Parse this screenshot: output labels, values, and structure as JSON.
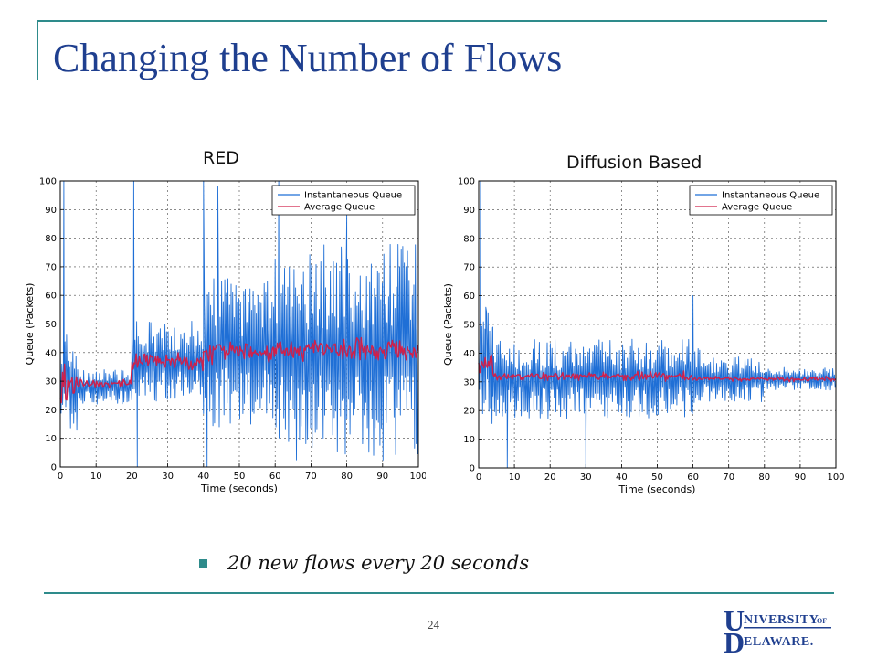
{
  "slide": {
    "title": "Changing the Number of Flows",
    "bullet": "20 new flows every 20 seconds",
    "page_number": "24",
    "logo_text": "UNIVERSITY OF DELAWARE"
  },
  "colors": {
    "accent": "#2e8b8b",
    "title": "#1f3f8f",
    "instantaneous": "#1f6fd6",
    "average": "#d0204a",
    "logo": "#1f3f8f"
  },
  "chart_data": [
    {
      "type": "line",
      "title": "RED",
      "xlabel": "Time (seconds)",
      "ylabel": "Queue (Packets)",
      "xlim": [
        0,
        100
      ],
      "ylim": [
        0,
        100
      ],
      "xticks": [
        0,
        10,
        20,
        30,
        40,
        50,
        60,
        70,
        80,
        90,
        100
      ],
      "yticks": [
        0,
        10,
        20,
        30,
        40,
        50,
        60,
        70,
        80,
        90,
        100
      ],
      "grid": true,
      "legend": "top-right",
      "series": [
        {
          "name": "Instantaneous Queue",
          "color": "#1f6fd6",
          "segments": [
            {
              "x": [
                0,
                5
              ],
              "mean": 30,
              "amp": 18
            },
            {
              "x": [
                5,
                20
              ],
              "mean": 28,
              "amp": 6
            },
            {
              "x": [
                20,
                40
              ],
              "mean": 37,
              "amp": 14
            },
            {
              "x": [
                40,
                60
              ],
              "mean": 40,
              "amp": 26
            },
            {
              "x": [
                60,
                100
              ],
              "mean": 40,
              "amp": 38
            }
          ],
          "spikes": [
            {
              "x": 1,
              "y": 100
            },
            {
              "x": 20.5,
              "y": 100
            },
            {
              "x": 21.5,
              "y": 0
            },
            {
              "x": 40,
              "y": 100
            },
            {
              "x": 41,
              "y": 0
            },
            {
              "x": 44,
              "y": 98
            },
            {
              "x": 61,
              "y": 100
            },
            {
              "x": 80,
              "y": 88
            }
          ]
        },
        {
          "name": "Average Queue",
          "color": "#d0204a",
          "segments": [
            {
              "x": [
                0,
                5
              ],
              "mean": 30,
              "amp": 10
            },
            {
              "x": [
                5,
                20
              ],
              "mean": 29,
              "amp": 2
            },
            {
              "x": [
                20,
                40
              ],
              "mean": 37,
              "amp": 4
            },
            {
              "x": [
                40,
                60
              ],
              "mean": 40,
              "amp": 5
            },
            {
              "x": [
                60,
                100
              ],
              "mean": 41,
              "amp": 5
            }
          ],
          "spikes": []
        }
      ]
    },
    {
      "type": "line",
      "title": "Diffusion Based",
      "xlabel": "Time (seconds)",
      "ylabel": "Queue (Packets)",
      "xlim": [
        0,
        100
      ],
      "ylim": [
        0,
        100
      ],
      "xticks": [
        0,
        10,
        20,
        30,
        40,
        50,
        60,
        70,
        80,
        90,
        100
      ],
      "yticks": [
        0,
        10,
        20,
        30,
        40,
        50,
        60,
        70,
        80,
        90,
        100
      ],
      "grid": true,
      "legend": "top-right",
      "series": [
        {
          "name": "Instantaneous Queue",
          "color": "#1f6fd6",
          "segments": [
            {
              "x": [
                0,
                4
              ],
              "mean": 35,
              "amp": 20
            },
            {
              "x": [
                4,
                62
              ],
              "mean": 31,
              "amp": 14
            },
            {
              "x": [
                62,
                80
              ],
              "mean": 31,
              "amp": 8
            },
            {
              "x": [
                80,
                100
              ],
              "mean": 31,
              "amp": 4
            }
          ],
          "spikes": [
            {
              "x": 0.5,
              "y": 100
            },
            {
              "x": 2,
              "y": 56
            },
            {
              "x": 8,
              "y": 0
            },
            {
              "x": 30,
              "y": 0
            },
            {
              "x": 60,
              "y": 60
            }
          ]
        },
        {
          "name": "Average Queue",
          "color": "#d0204a",
          "segments": [
            {
              "x": [
                0,
                4
              ],
              "mean": 36,
              "amp": 5
            },
            {
              "x": [
                4,
                60
              ],
              "mean": 32,
              "amp": 2
            },
            {
              "x": [
                60,
                100
              ],
              "mean": 31,
              "amp": 1
            }
          ],
          "spikes": []
        }
      ]
    }
  ]
}
